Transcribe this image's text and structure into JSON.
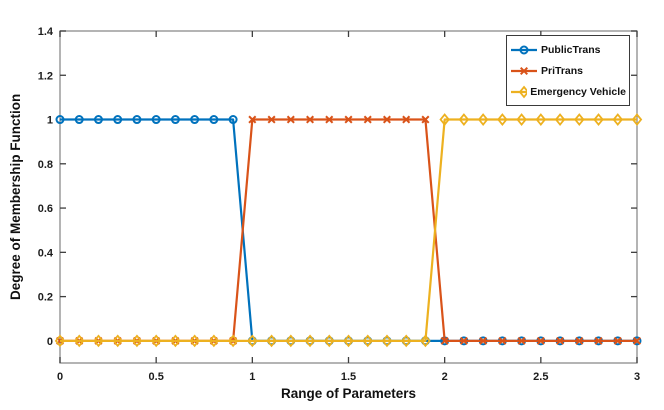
{
  "figure": {
    "background": "#ffffff",
    "box_color": "#8c8c8c",
    "tick_color": "#3d3d3d",
    "text_color": "#1c1c1c",
    "legend_border_color": "#3a3a3a"
  },
  "chart_data": {
    "type": "line",
    "title": "",
    "xlabel": "Range of Parameters",
    "ylabel": "Degree of Membership Function",
    "xlim": [
      0,
      3
    ],
    "ylim": [
      -0.1,
      1.4
    ],
    "x_ticks": [
      0,
      0.5,
      1,
      1.5,
      2,
      2.5,
      3
    ],
    "x_tick_labels": [
      "0",
      "0.5",
      "1",
      "1.5",
      "2",
      "2.5",
      "3"
    ],
    "y_ticks": [
      0,
      0.2,
      0.4,
      0.6,
      0.8,
      1,
      1.2,
      1.4
    ],
    "y_tick_labels": [
      "0",
      "0.2",
      "0.4",
      "0.6",
      "0.8",
      "1",
      "1.2",
      "1.4"
    ],
    "grid": false,
    "legend_position": "top-right",
    "x": [
      0,
      0.1,
      0.2,
      0.3,
      0.4,
      0.5,
      0.6,
      0.7,
      0.8,
      0.9,
      1,
      1.1,
      1.2,
      1.3,
      1.4,
      1.5,
      1.6,
      1.7,
      1.8,
      1.9,
      2,
      2.1,
      2.2,
      2.3,
      2.4,
      2.5,
      2.6,
      2.7,
      2.8,
      2.9,
      3
    ],
    "series": [
      {
        "name": "PublicTrans",
        "color": "#0072BD",
        "marker": "circle",
        "values": [
          1,
          1,
          1,
          1,
          1,
          1,
          1,
          1,
          1,
          1,
          0,
          0,
          0,
          0,
          0,
          0,
          0,
          0,
          0,
          0,
          0,
          0,
          0,
          0,
          0,
          0,
          0,
          0,
          0,
          0,
          0
        ]
      },
      {
        "name": "PriTrans",
        "color": "#D95319",
        "marker": "x",
        "values": [
          0,
          0,
          0,
          0,
          0,
          0,
          0,
          0,
          0,
          0,
          1,
          1,
          1,
          1,
          1,
          1,
          1,
          1,
          1,
          1,
          0,
          0,
          0,
          0,
          0,
          0,
          0,
          0,
          0,
          0,
          0
        ]
      },
      {
        "name": "Emergency Vehicle",
        "color": "#EDB120",
        "marker": "diamond",
        "values": [
          0,
          0,
          0,
          0,
          0,
          0,
          0,
          0,
          0,
          0,
          0,
          0,
          0,
          0,
          0,
          0,
          0,
          0,
          0,
          0,
          1,
          1,
          1,
          1,
          1,
          1,
          1,
          1,
          1,
          1,
          1
        ]
      }
    ]
  }
}
